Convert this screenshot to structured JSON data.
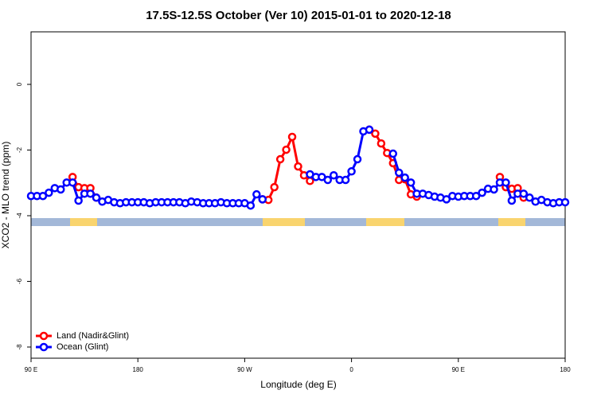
{
  "chart_data": {
    "type": "line",
    "title": "17.5S-12.5S October (Ver 10)   2015-01-01 to 2020-12-18",
    "xlabel": "Longitude (deg E)",
    "ylabel": "XCO2 - MLO trend (ppm)",
    "x": [
      -270,
      -265,
      -260,
      -255,
      -250,
      -245,
      -240,
      -235,
      -230,
      -225,
      -220,
      -215,
      -210,
      -205,
      -200,
      -195,
      -190,
      -185,
      -180,
      -175,
      -170,
      -165,
      -160,
      -155,
      -150,
      -145,
      -140,
      -135,
      -130,
      -125,
      -120,
      -115,
      -110,
      -105,
      -100,
      -95,
      -90,
      -85,
      -80,
      -75,
      -70,
      -65,
      -60,
      -55,
      -50,
      -45,
      -40,
      -35,
      -30,
      -25,
      -20,
      -15,
      -10,
      -5,
      0,
      5,
      10,
      15,
      20,
      25,
      30,
      35,
      40,
      45,
      50,
      55,
      60,
      65,
      70,
      75,
      80,
      85,
      90,
      95,
      100,
      105,
      110,
      115,
      120,
      125,
      130,
      135,
      140,
      145,
      150,
      155,
      160,
      165,
      170,
      175,
      180
    ],
    "series": [
      {
        "name": "Land (Nadir&Glint)",
        "color": "#ff0000",
        "values": [
          null,
          null,
          null,
          null,
          null,
          null,
          null,
          -2.82,
          -3.13,
          -3.16,
          -3.16,
          -3.45,
          null,
          null,
          null,
          null,
          null,
          null,
          null,
          null,
          null,
          null,
          null,
          null,
          null,
          null,
          null,
          null,
          null,
          null,
          null,
          null,
          null,
          null,
          null,
          null,
          null,
          null,
          null,
          -3.5,
          -3.52,
          -3.13,
          -2.28,
          -1.99,
          -1.6,
          -2.5,
          -2.77,
          -2.94,
          null,
          null,
          null,
          null,
          null,
          null,
          null,
          null,
          null,
          -1.38,
          -1.5,
          -1.8,
          -2.09,
          -2.4,
          -2.91,
          -2.89,
          -3.35,
          -3.42,
          null,
          null,
          null,
          null,
          null,
          null,
          null,
          null,
          null,
          null,
          null,
          null,
          null,
          -2.82,
          -3.13,
          -3.18,
          -3.16,
          -3.45,
          null,
          null,
          null,
          null,
          null,
          null,
          null
        ]
      },
      {
        "name": "Ocean (Glint)",
        "color": "#0000ff",
        "values": [
          -3.4,
          -3.4,
          -3.4,
          -3.3,
          -3.16,
          -3.2,
          -2.99,
          -2.99,
          -3.54,
          -3.33,
          -3.33,
          -3.45,
          -3.57,
          -3.52,
          -3.59,
          -3.62,
          -3.59,
          -3.59,
          -3.59,
          -3.59,
          -3.62,
          -3.59,
          -3.59,
          -3.59,
          -3.59,
          -3.59,
          -3.62,
          -3.57,
          -3.59,
          -3.62,
          -3.62,
          -3.62,
          -3.59,
          -3.62,
          -3.62,
          -3.62,
          -3.62,
          -3.69,
          -3.35,
          -3.5,
          null,
          null,
          null,
          null,
          null,
          null,
          null,
          -2.74,
          -2.82,
          -2.82,
          -2.91,
          -2.77,
          -2.91,
          -2.91,
          -2.65,
          -2.28,
          -1.43,
          -1.38,
          null,
          null,
          null,
          -2.11,
          -2.69,
          -2.84,
          -2.99,
          -3.33,
          -3.33,
          -3.37,
          -3.42,
          -3.45,
          -3.5,
          -3.4,
          -3.42,
          -3.4,
          -3.4,
          -3.4,
          -3.3,
          -3.18,
          -3.2,
          -2.99,
          -2.99,
          -3.54,
          -3.33,
          -3.33,
          -3.45,
          -3.57,
          -3.52,
          -3.59,
          -3.62,
          -3.59,
          -3.59
        ]
      }
    ],
    "xlim": [
      -270,
      180
    ],
    "xticks": [
      {
        "value": -270,
        "label": "90 E"
      },
      {
        "value": -180,
        "label": "180"
      },
      {
        "value": -90,
        "label": "90 W"
      },
      0,
      {
        "value": 90,
        "label": "90 E"
      },
      {
        "value": 180,
        "label": "180"
      }
    ],
    "ylim": [
      -8.34,
      1.6
    ],
    "yticks": [
      0,
      -2,
      -4,
      -6,
      -8
    ],
    "legend": "bottom-left"
  }
}
